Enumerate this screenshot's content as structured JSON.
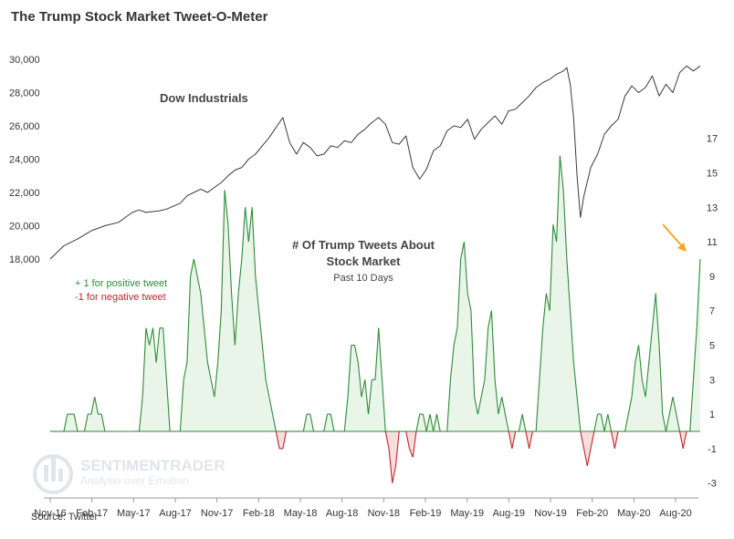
{
  "title": "The Trump Stock Market Tweet-O-Meter",
  "source": "Source: Twitter",
  "watermark": {
    "brand": "SENTIMENTRADER",
    "tagline": "Analysis over Emotion"
  },
  "annotations": {
    "dow_label": "Dow Industrials",
    "tweets_line1": "# Of Trump Tweets About",
    "tweets_line2": "Stock Market",
    "tweets_line3": "Past 10 Days",
    "legend_pos": "+ 1 for positive tweet",
    "legend_neg": "-1 for negative tweet"
  },
  "colors": {
    "dow_line": "#3a3a3a",
    "positive": "#2e8b37",
    "positive_fill": "#eaf5ea",
    "negative": "#c0282d",
    "negative_fill": "#f6dede",
    "arrow": "#f5a623"
  },
  "chart_data": {
    "type": "line",
    "x_ticks": [
      "Nov-16",
      "Feb-17",
      "May-17",
      "Aug-17",
      "Nov-17",
      "Feb-18",
      "May-18",
      "Aug-18",
      "Nov-18",
      "Feb-19",
      "May-19",
      "Aug-19",
      "Nov-19",
      "Feb-20",
      "May-20",
      "Aug-20"
    ],
    "left_axis": {
      "ticks": [
        "18,000",
        "20,000",
        "22,000",
        "24,000",
        "26,000",
        "28,000",
        "30,000"
      ],
      "range": [
        18000,
        30000
      ]
    },
    "right_axis": {
      "ticks": [
        "-3",
        "-1",
        "1",
        "3",
        "5",
        "7",
        "9",
        "11",
        "13",
        "15",
        "17"
      ],
      "range": [
        -3,
        17
      ]
    },
    "series": [
      {
        "name": "Dow Industrials",
        "axis": "left",
        "points": [
          [
            0,
            18000
          ],
          [
            2,
            18800
          ],
          [
            4,
            19200
          ],
          [
            6,
            19700
          ],
          [
            8,
            20000
          ],
          [
            10,
            20200
          ],
          [
            11,
            20500
          ],
          [
            12,
            20800
          ],
          [
            13,
            20950
          ],
          [
            14,
            20800
          ],
          [
            16,
            20900
          ],
          [
            17,
            21000
          ],
          [
            19,
            21350
          ],
          [
            20,
            21800
          ],
          [
            21,
            22000
          ],
          [
            22,
            22200
          ],
          [
            23,
            22000
          ],
          [
            24,
            22300
          ],
          [
            25,
            22600
          ],
          [
            26,
            23000
          ],
          [
            27,
            23350
          ],
          [
            28,
            23500
          ],
          [
            29,
            24000
          ],
          [
            30,
            24300
          ],
          [
            31,
            24800
          ],
          [
            32,
            25300
          ],
          [
            33,
            25900
          ],
          [
            34,
            26500
          ],
          [
            35,
            25000
          ],
          [
            36,
            24300
          ],
          [
            37,
            25000
          ],
          [
            38,
            24700
          ],
          [
            39,
            24200
          ],
          [
            40,
            24300
          ],
          [
            41,
            24800
          ],
          [
            42,
            24700
          ],
          [
            43,
            25100
          ],
          [
            44,
            25000
          ],
          [
            45,
            25500
          ],
          [
            46,
            25800
          ],
          [
            47,
            26200
          ],
          [
            48,
            26500
          ],
          [
            49,
            26100
          ],
          [
            50,
            25000
          ],
          [
            51,
            24900
          ],
          [
            52,
            25400
          ],
          [
            53,
            23500
          ],
          [
            54,
            22800
          ],
          [
            55,
            23400
          ],
          [
            56,
            24500
          ],
          [
            57,
            24800
          ],
          [
            58,
            25700
          ],
          [
            59,
            26000
          ],
          [
            60,
            25900
          ],
          [
            61,
            26400
          ],
          [
            62,
            25200
          ],
          [
            63,
            25800
          ],
          [
            64,
            26200
          ],
          [
            65,
            26600
          ],
          [
            66,
            26100
          ],
          [
            67,
            26900
          ],
          [
            68,
            27000
          ],
          [
            69,
            27400
          ],
          [
            70,
            27800
          ],
          [
            71,
            28300
          ],
          [
            72,
            28600
          ],
          [
            73,
            28800
          ],
          [
            74,
            29100
          ],
          [
            75,
            29300
          ],
          [
            75.5,
            29500
          ],
          [
            76,
            28500
          ],
          [
            76.5,
            26500
          ],
          [
            77,
            23000
          ],
          [
            77.5,
            20500
          ],
          [
            78,
            21800
          ],
          [
            79,
            23500
          ],
          [
            80,
            24300
          ],
          [
            81,
            25500
          ],
          [
            82,
            26000
          ],
          [
            83,
            26400
          ],
          [
            84,
            27800
          ],
          [
            85,
            28400
          ],
          [
            86,
            28000
          ],
          [
            87,
            28300
          ],
          [
            88,
            29000
          ],
          [
            89,
            27800
          ],
          [
            90,
            28500
          ],
          [
            91,
            28000
          ],
          [
            92,
            29200
          ],
          [
            93,
            29600
          ],
          [
            94,
            29300
          ],
          [
            95,
            29600
          ]
        ]
      },
      {
        "name": "# Of Trump Tweets About Stock Market",
        "axis": "right",
        "points": [
          [
            0,
            0
          ],
          [
            2,
            0
          ],
          [
            2.5,
            1
          ],
          [
            3.5,
            1
          ],
          [
            4,
            0
          ],
          [
            5,
            0
          ],
          [
            5.5,
            1
          ],
          [
            6,
            1
          ],
          [
            6.5,
            2
          ],
          [
            7,
            1
          ],
          [
            7.5,
            1
          ],
          [
            8,
            0
          ],
          [
            12,
            0
          ],
          [
            13,
            0
          ],
          [
            13.5,
            2
          ],
          [
            14,
            6
          ],
          [
            14.5,
            5
          ],
          [
            15,
            6
          ],
          [
            15.5,
            4
          ],
          [
            16,
            6
          ],
          [
            16.5,
            6
          ],
          [
            17,
            3
          ],
          [
            17.5,
            0
          ],
          [
            19,
            0
          ],
          [
            19.5,
            3
          ],
          [
            20,
            4
          ],
          [
            20.5,
            9
          ],
          [
            21,
            10
          ],
          [
            21.5,
            9
          ],
          [
            22,
            8
          ],
          [
            22.5,
            6
          ],
          [
            23,
            4
          ],
          [
            23.5,
            3
          ],
          [
            24,
            2
          ],
          [
            24.5,
            4
          ],
          [
            25,
            7
          ],
          [
            25.5,
            14
          ],
          [
            26,
            12
          ],
          [
            26.5,
            8
          ],
          [
            27,
            5
          ],
          [
            27.5,
            8
          ],
          [
            28,
            10
          ],
          [
            28.5,
            13
          ],
          [
            29,
            11
          ],
          [
            29.5,
            13
          ],
          [
            30,
            9
          ],
          [
            30.5,
            7
          ],
          [
            31,
            5
          ],
          [
            31.5,
            3
          ],
          [
            32,
            2
          ],
          [
            32.5,
            1
          ],
          [
            33,
            0
          ],
          [
            33.5,
            -1
          ],
          [
            34,
            -1
          ],
          [
            34.5,
            0
          ],
          [
            35,
            0
          ],
          [
            37,
            0
          ],
          [
            37.5,
            1
          ],
          [
            38,
            1
          ],
          [
            38.5,
            0
          ],
          [
            40,
            0
          ],
          [
            40.5,
            1
          ],
          [
            41,
            1
          ],
          [
            41.5,
            0
          ],
          [
            43,
            0
          ],
          [
            43.5,
            2
          ],
          [
            44,
            5
          ],
          [
            44.5,
            5
          ],
          [
            45,
            4
          ],
          [
            45.5,
            2
          ],
          [
            46,
            3
          ],
          [
            46.5,
            1
          ],
          [
            47,
            3
          ],
          [
            47.5,
            3
          ],
          [
            48,
            6
          ],
          [
            48.5,
            3
          ],
          [
            49,
            0
          ],
          [
            49.5,
            -1
          ],
          [
            50,
            -3
          ],
          [
            50.5,
            -2
          ],
          [
            51,
            0
          ],
          [
            52,
            0
          ],
          [
            52.5,
            -1
          ],
          [
            53,
            -1.5
          ],
          [
            53.5,
            0
          ],
          [
            54,
            1
          ],
          [
            54.5,
            1
          ],
          [
            55,
            0
          ],
          [
            55.5,
            1
          ],
          [
            56,
            0
          ],
          [
            56.5,
            1
          ],
          [
            57,
            0
          ],
          [
            58,
            0
          ],
          [
            58.5,
            3
          ],
          [
            59,
            5
          ],
          [
            59.5,
            6
          ],
          [
            60,
            10
          ],
          [
            60.5,
            11
          ],
          [
            61,
            8
          ],
          [
            61.5,
            7
          ],
          [
            62,
            2
          ],
          [
            62.5,
            1
          ],
          [
            63,
            2
          ],
          [
            63.5,
            3
          ],
          [
            64,
            6
          ],
          [
            64.5,
            7
          ],
          [
            65,
            3
          ],
          [
            65.5,
            1
          ],
          [
            66,
            2
          ],
          [
            66.5,
            1
          ],
          [
            67,
            0
          ],
          [
            67.5,
            -1
          ],
          [
            68,
            0
          ],
          [
            68.5,
            0
          ],
          [
            69,
            1
          ],
          [
            69.5,
            0
          ],
          [
            70,
            -1
          ],
          [
            70.5,
            0
          ],
          [
            71,
            0
          ],
          [
            71.5,
            3
          ],
          [
            72,
            6
          ],
          [
            72.5,
            8
          ],
          [
            73,
            7
          ],
          [
            73.5,
            12
          ],
          [
            74,
            11
          ],
          [
            74.5,
            16
          ],
          [
            75,
            14
          ],
          [
            75.5,
            10
          ],
          [
            76,
            7
          ],
          [
            76.5,
            4
          ],
          [
            77,
            2
          ],
          [
            77.5,
            0
          ],
          [
            78,
            -1
          ],
          [
            78.5,
            -2
          ],
          [
            79,
            -1
          ],
          [
            79.5,
            0
          ],
          [
            80,
            1
          ],
          [
            80.5,
            1
          ],
          [
            81,
            0
          ],
          [
            81.5,
            1
          ],
          [
            82,
            0
          ],
          [
            82.5,
            -1
          ],
          [
            83,
            0
          ],
          [
            84,
            0
          ],
          [
            84.5,
            1
          ],
          [
            85,
            2
          ],
          [
            85.5,
            4
          ],
          [
            86,
            5
          ],
          [
            86.5,
            3
          ],
          [
            87,
            2
          ],
          [
            87.5,
            4
          ],
          [
            88,
            6
          ],
          [
            88.5,
            8
          ],
          [
            89,
            5
          ],
          [
            89.5,
            1
          ],
          [
            90,
            0
          ],
          [
            90.5,
            1
          ],
          [
            91,
            2
          ],
          [
            91.5,
            1
          ],
          [
            92,
            0
          ],
          [
            92.5,
            -1
          ],
          [
            93,
            0
          ],
          [
            93.5,
            0
          ],
          [
            94,
            3
          ],
          [
            94.5,
            6
          ],
          [
            95,
            10
          ]
        ]
      }
    ],
    "grid": false,
    "legend_position": "left"
  }
}
